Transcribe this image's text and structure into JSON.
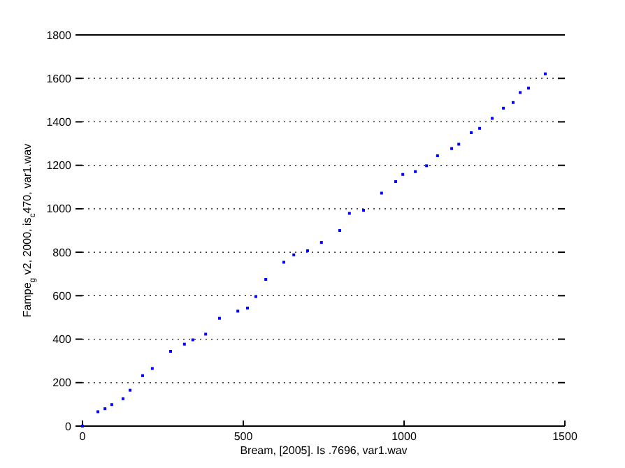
{
  "chart_data": {
    "type": "scatter",
    "xlabel": "Bream, [2005]. Is .7696, var1.wav",
    "ylabel": "Fampe$_{g}$ v2, 2000, is$_{c}$470, var1.wav",
    "x": [
      0,
      48,
      70,
      91,
      126,
      148,
      187,
      217,
      274,
      317,
      343,
      383,
      426,
      483,
      513,
      539,
      570,
      626,
      657,
      700,
      743,
      800,
      830,
      874,
      930,
      974,
      996,
      1035,
      1070,
      1104,
      1148,
      1170,
      1209,
      1235,
      1274,
      1309,
      1339,
      1361,
      1387,
      1439
    ],
    "series": [
      {
        "color": "#0000ff",
        "values": [
          0,
          66,
          80,
          99,
          126,
          165,
          232,
          265,
          344,
          377,
          397,
          423,
          496,
          529,
          543,
          596,
          675,
          754,
          788,
          807,
          845,
          900,
          979,
          993,
          1072,
          1125,
          1158,
          1171,
          1198,
          1244,
          1277,
          1297,
          1350,
          1370,
          1416,
          1463,
          1489,
          1535,
          1555,
          1621
        ]
      }
    ],
    "xlim": [
      0,
      1500
    ],
    "xticks": [
      0,
      500,
      1000,
      1500
    ],
    "ylim": [
      0,
      1800
    ],
    "yticks": [
      0,
      200,
      400,
      600,
      800,
      1000,
      1200,
      1400,
      1600,
      1800
    ],
    "grid": "y",
    "marker": "square"
  }
}
